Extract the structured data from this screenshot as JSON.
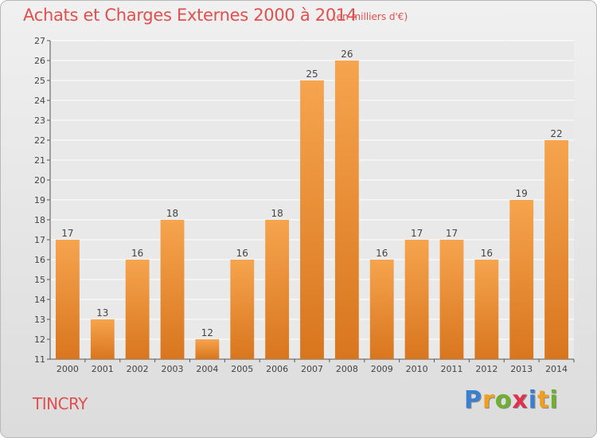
{
  "header": {
    "title": "Achats et Charges Externes 2000 à 2014",
    "subtitle": "(en milliers d'€)"
  },
  "footer": {
    "commune": "TINCRY",
    "logo_letters": [
      "P",
      "r",
      "o",
      "x",
      "i",
      "t",
      "i"
    ],
    "logo_colors": [
      "#3a7fd0",
      "#f0a020",
      "#70b030",
      "#e03050",
      "#3a7fd0",
      "#f0a020",
      "#70b030"
    ]
  },
  "colors": {
    "bar_top": "#f6a44e",
    "bar_bottom": "#d8761e",
    "title": "#e0504f"
  },
  "chart_data": {
    "type": "bar",
    "title": "Achats et Charges Externes 2000 à 2014",
    "subtitle": "(en milliers d'€)",
    "categories": [
      "2000",
      "2001",
      "2002",
      "2003",
      "2004",
      "2005",
      "2006",
      "2007",
      "2008",
      "2009",
      "2010",
      "2011",
      "2012",
      "2013",
      "2014"
    ],
    "values": [
      17,
      13,
      16,
      18,
      12,
      16,
      18,
      25,
      26,
      16,
      17,
      17,
      16,
      19,
      22
    ],
    "ylim": [
      11,
      27
    ],
    "yticks": [
      11,
      12,
      13,
      14,
      15,
      16,
      17,
      18,
      19,
      20,
      21,
      22,
      23,
      24,
      25,
      26,
      27
    ],
    "grid": true,
    "legend": "none"
  }
}
